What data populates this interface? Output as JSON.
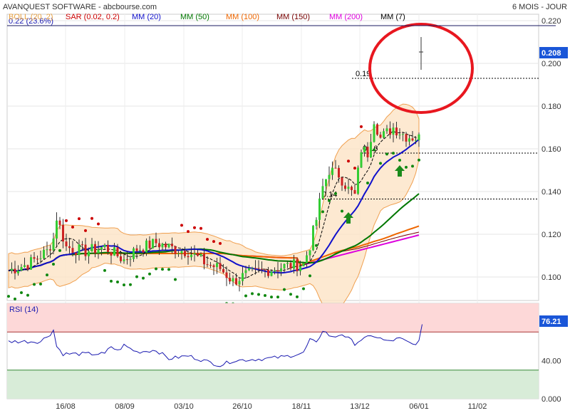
{
  "header": {
    "title": "AVANQUEST SOFTWARE - abcbourse.com",
    "period": "6 MOIS - JOUR"
  },
  "legend": [
    {
      "label": "BOLL (20, 2)",
      "color": "#e8a040"
    },
    {
      "label": "SAR (0.02, 0.2)",
      "color": "#cc0000"
    },
    {
      "label": "MM (20)",
      "color": "#1010cc"
    },
    {
      "label": "MM (50)",
      "color": "#007700"
    },
    {
      "label": "MM (100)",
      "color": "#ee6600"
    },
    {
      "label": "MM (150)",
      "color": "#770000"
    },
    {
      "label": "MM (200)",
      "color": "#dd00dd"
    },
    {
      "label": "MM (7)",
      "color": "#000000"
    }
  ],
  "info": {
    "change": "0.22  (23.6%)"
  },
  "price_badge": {
    "value": "0.208",
    "color": "#1a56d8"
  },
  "rsi_badge": {
    "value": "76.21",
    "color": "#1a56d8"
  },
  "rsi_label": "RSI (14)",
  "chart_data": {
    "type": "candlestick",
    "title": "AVANQUEST SOFTWARE - abcbourse.com",
    "ylim": [
      0.089,
      0.223
    ],
    "y_ticks": [
      {
        "label": "0.220",
        "value": 0.22
      },
      {
        "label": "0.200",
        "value": 0.2
      },
      {
        "label": "0.180",
        "value": 0.18
      },
      {
        "label": "0.160",
        "value": 0.16
      },
      {
        "label": "0.140",
        "value": 0.14
      },
      {
        "label": "0.120",
        "value": 0.12
      },
      {
        "label": "0.100",
        "value": 0.1
      }
    ],
    "x_ticks": [
      "16/08",
      "08/09",
      "03/10",
      "26/10",
      "18/11",
      "13/12",
      "06/01",
      "11/02"
    ],
    "levels": [
      {
        "label": "0.19",
        "value": 0.193
      },
      {
        "label": "0.16",
        "value": 0.158
      },
      {
        "label": "0.14",
        "value": 0.1365
      }
    ],
    "rsi": {
      "ylim": [
        0,
        100
      ],
      "y_ticks": [
        {
          "label": "40.00",
          "value": 40
        },
        {
          "label": "0.000",
          "value": 0
        }
      ],
      "bands": [
        30,
        70
      ],
      "last": 76.21
    }
  }
}
